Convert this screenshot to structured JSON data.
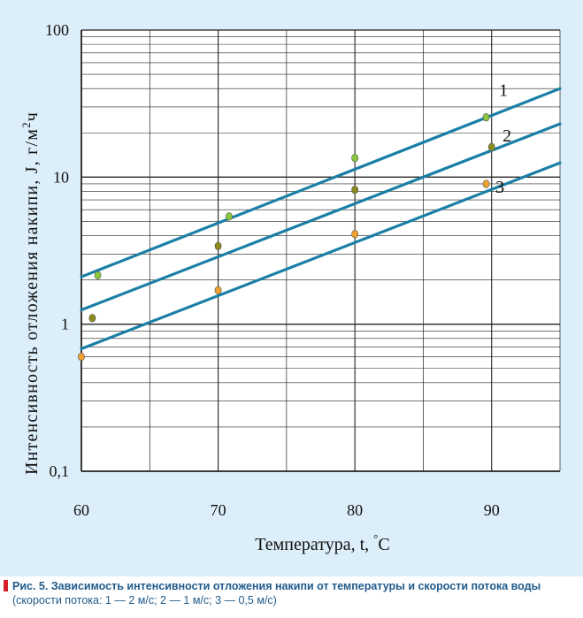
{
  "chart_data": {
    "type": "scatter",
    "xlabel": "Температура, t, ",
    "xlabel_unit": "°C",
    "ylabel": "Интенсивность отложения накипи, J, г/м",
    "ylabel_sup": "2",
    "ylabel_tail": "ч",
    "xlim": [
      60,
      95
    ],
    "ylim": [
      0.1,
      100
    ],
    "yscale": "log",
    "grid": true,
    "x_ticks": [
      60,
      70,
      80,
      90
    ],
    "x_tick_labels": [
      "60",
      "70",
      "80",
      "90"
    ],
    "y_ticks": [
      0.1,
      1,
      10,
      100
    ],
    "y_tick_labels": [
      "0,1",
      "1",
      "10",
      "100"
    ],
    "series": [
      {
        "name": "1",
        "color": "#8cc63f",
        "line": {
          "x": [
            60,
            95
          ],
          "y": [
            2.1,
            40
          ]
        },
        "points": {
          "x": [
            61.2,
            70.8,
            80.0,
            89.6
          ],
          "y": [
            2.15,
            5.4,
            13.5,
            25.5
          ]
        }
      },
      {
        "name": "2",
        "color": "#8a8a1e",
        "line": {
          "x": [
            60,
            95
          ],
          "y": [
            1.25,
            23
          ]
        },
        "points": {
          "x": [
            60.8,
            70.0,
            80.0,
            90.0
          ],
          "y": [
            1.1,
            3.4,
            8.2,
            16.0
          ]
        }
      },
      {
        "name": "3",
        "color": "#f0a030",
        "line": {
          "x": [
            60,
            95
          ],
          "y": [
            0.68,
            12.5
          ]
        },
        "points": {
          "x": [
            60.0,
            70.0,
            80.0,
            89.6
          ],
          "y": [
            0.6,
            1.7,
            4.1,
            9.0
          ]
        }
      }
    ],
    "line_color": "#1a7fa6"
  },
  "caption": {
    "bold": "Рис. 5. Зависимость интенсивности отложения накипи от температуры и скорости потока воды",
    "normal": " (скорости потока: 1 — 2 м/с; 2 — 1 м/с; 3 — 0,5 м/с)"
  }
}
